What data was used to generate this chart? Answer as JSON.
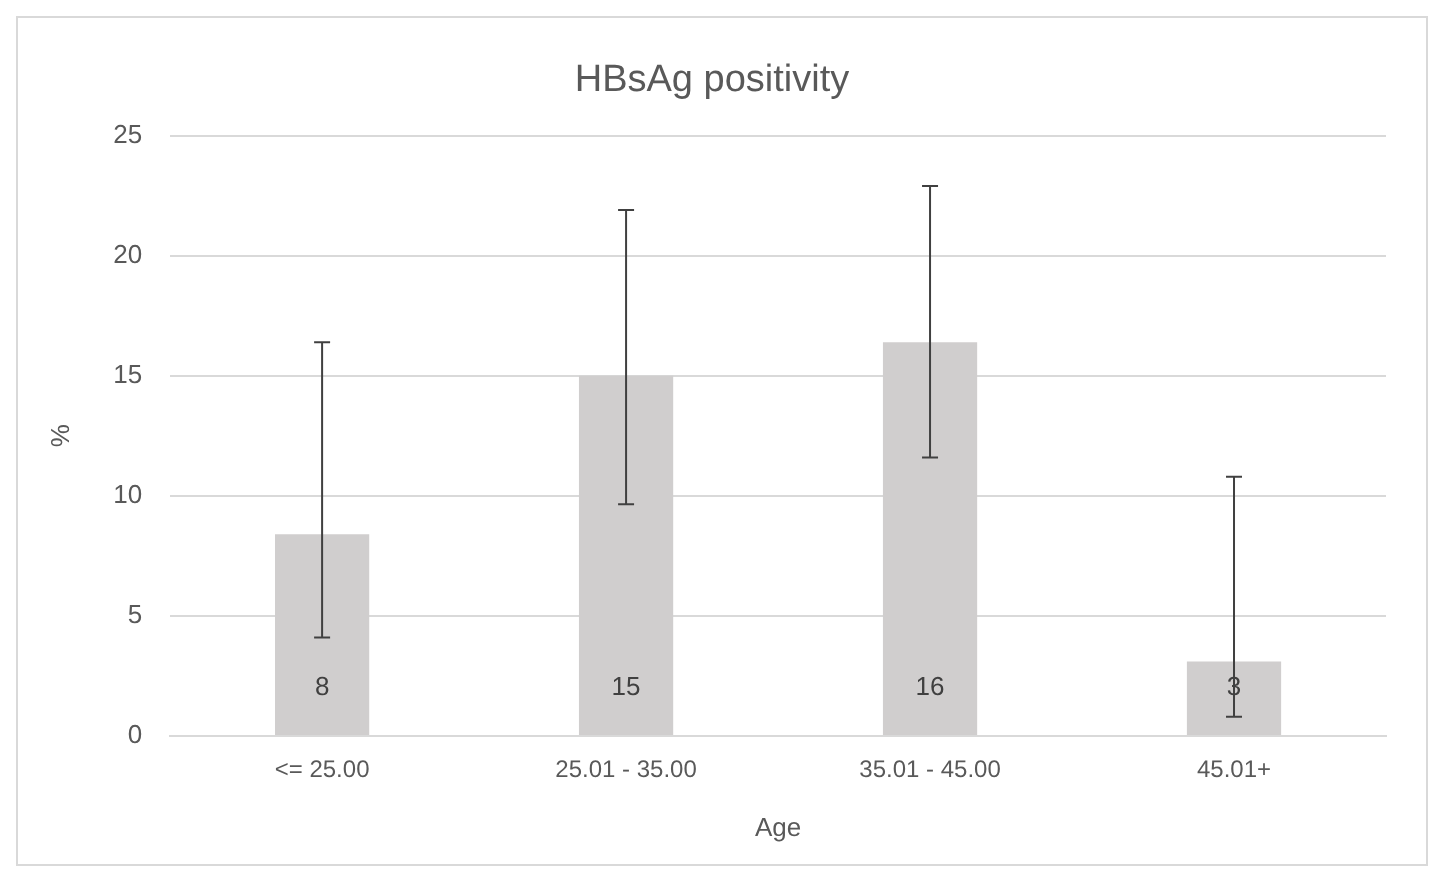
{
  "chart_data": {
    "type": "bar",
    "title": "HBsAg positivity",
    "xlabel": "Age",
    "ylabel": "%",
    "categories": [
      "<= 25.00",
      "25.01 - 35.00",
      "35.01 - 45.00",
      "45.01+"
    ],
    "values": [
      8.4,
      15.0,
      16.4,
      3.1
    ],
    "errors": [
      [
        4.1,
        16.4
      ],
      [
        9.65,
        21.9
      ],
      [
        11.6,
        22.9
      ],
      [
        0.8,
        10.8
      ]
    ],
    "value_labels": [
      "8",
      "15",
      "16",
      "3"
    ],
    "color": "#d0cece",
    "ylim": [
      0,
      25
    ],
    "yticks": [
      0,
      5,
      10,
      15,
      20,
      25
    ],
    "grid": "y",
    "legend": false
  }
}
